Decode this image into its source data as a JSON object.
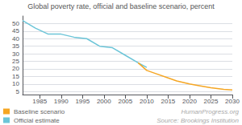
{
  "chart_data": {
    "type": "line",
    "title": "Global poverty rate, official and baseline scenario, percent",
    "annotations": [
      "HumanProgress.org",
      "Source: Brookings Institution"
    ],
    "series": [
      {
        "name": "Official estimate",
        "color": "#6CC5D8",
        "x": [
          1981,
          1984,
          1987,
          1990,
          1993,
          1996,
          1999,
          2002,
          2005,
          2008,
          2010
        ],
        "values": [
          52,
          47,
          43,
          43,
          41,
          40,
          35,
          34,
          29,
          24,
          21
        ]
      },
      {
        "name": "Baseline scenario",
        "color": "#F5A623",
        "x": [
          2008,
          2010,
          2012,
          2015,
          2017,
          2020,
          2022,
          2025,
          2028,
          2030
        ],
        "values": [
          24,
          19,
          17,
          14,
          12,
          10,
          9,
          7.5,
          6.5,
          6
        ]
      }
    ],
    "xlim": [
      1981,
      2030
    ],
    "xticks": [
      1985,
      1990,
      1995,
      2000,
      2005,
      2010,
      2015,
      2020,
      2025,
      2030
    ],
    "ylim": [
      3,
      55
    ],
    "yticks": [
      5,
      10,
      15,
      20,
      25,
      30,
      35,
      40,
      45,
      50
    ],
    "grid": true,
    "legend": "lower left"
  }
}
